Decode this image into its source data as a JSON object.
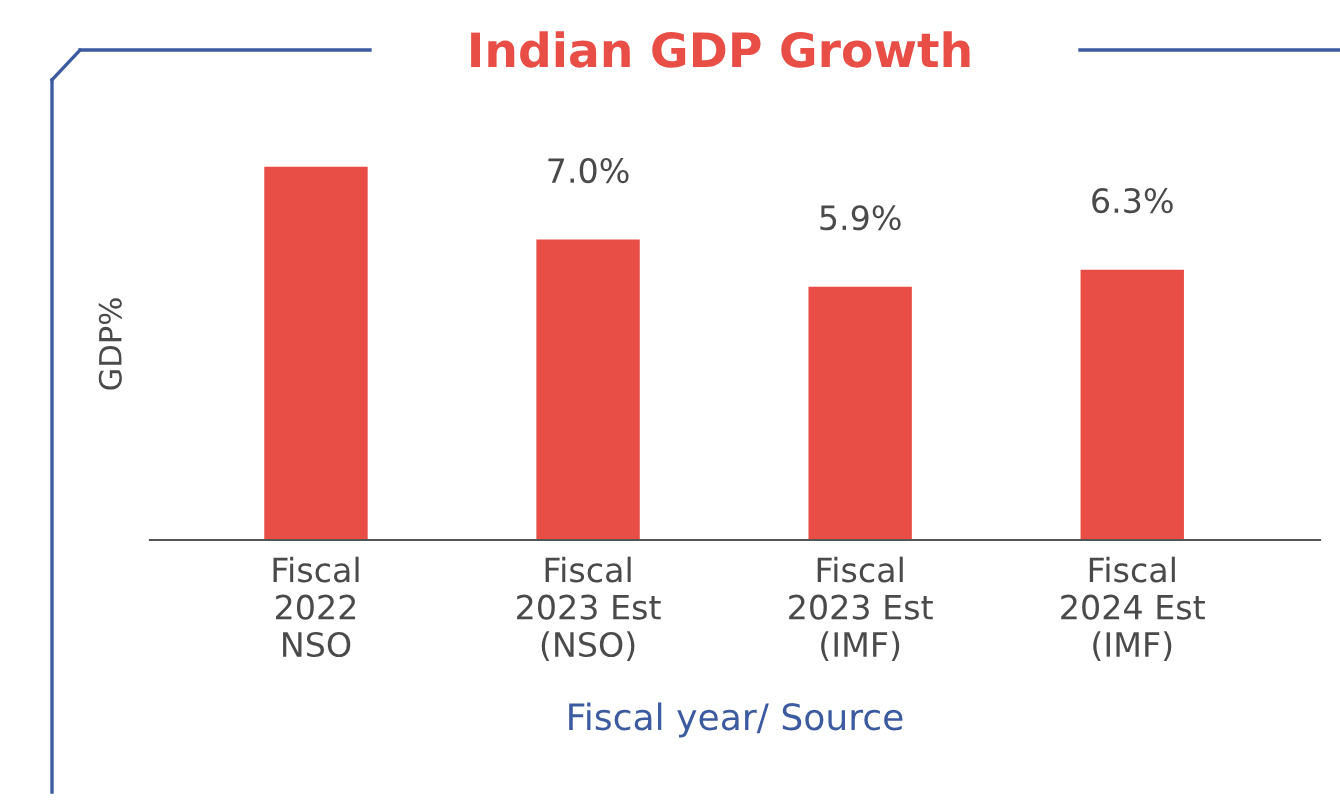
{
  "chart_data": {
    "type": "bar",
    "title": "Indian GDP Growth",
    "xlabel": "Fiscal year/ Source",
    "ylabel": "GDP%",
    "categories": [
      "Fiscal\n2022\nNSO",
      "Fiscal\n2023 Est\n(NSO)",
      "Fiscal\n2023 Est\n(IMF)",
      "Fiscal\n2024 Est\n(IMF)"
    ],
    "values": [
      8.7,
      7.0,
      5.9,
      6.3
    ],
    "value_labels": [
      null,
      "7.0%",
      "5.9%",
      "6.3%"
    ],
    "color": "#e84e45",
    "grid": false,
    "legend": false
  }
}
